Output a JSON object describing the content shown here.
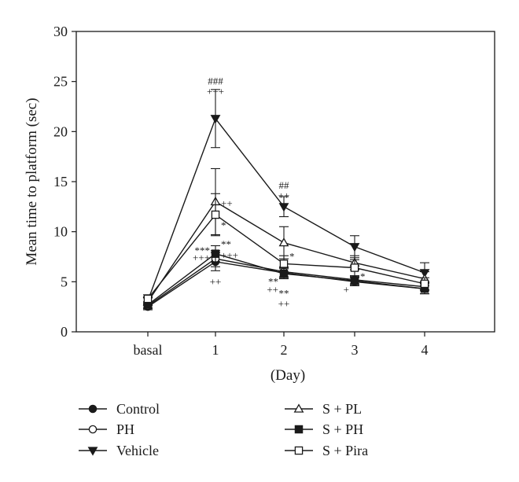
{
  "chart_data": {
    "type": "line",
    "title": "",
    "xlabel": "(Day)",
    "ylabel": "Mean time to platform (sec)",
    "ylim": [
      0,
      30
    ],
    "y_ticks": [
      0,
      5,
      10,
      15,
      20,
      25,
      30
    ],
    "categories": [
      "basal",
      "1",
      "2",
      "3",
      "4"
    ],
    "grid": false,
    "legend_position": "bottom",
    "series": [
      {
        "name": "Control",
        "marker": "circle",
        "fill": "filled",
        "values": [
          2.5,
          7.0,
          5.9,
          5.0,
          4.3
        ],
        "err": [
          0.3,
          0.9,
          0.5,
          0.4,
          0.5
        ]
      },
      {
        "name": "PH",
        "marker": "circle",
        "fill": "open",
        "values": [
          2.6,
          7.3,
          6.0,
          5.2,
          4.5
        ],
        "err": [
          0.3,
          0.8,
          0.5,
          0.4,
          0.4
        ]
      },
      {
        "name": "Vehicle",
        "marker": "triangle-down",
        "fill": "filled",
        "values": [
          3.1,
          21.3,
          12.5,
          8.5,
          5.9
        ],
        "err": [
          0.4,
          2.9,
          1.0,
          1.1,
          1.0
        ]
      },
      {
        "name": "S + PL",
        "marker": "triangle-up",
        "fill": "open",
        "values": [
          3.0,
          13.0,
          8.9,
          6.9,
          5.3
        ],
        "err": [
          0.4,
          3.3,
          1.6,
          0.7,
          0.7
        ]
      },
      {
        "name": "S + PH",
        "marker": "square",
        "fill": "filled",
        "values": [
          2.7,
          7.8,
          5.8,
          5.1,
          4.3
        ],
        "err": [
          0.3,
          0.8,
          0.5,
          0.4,
          0.5
        ]
      },
      {
        "name": "S + Pira",
        "marker": "square",
        "fill": "open",
        "values": [
          3.3,
          11.7,
          6.8,
          6.4,
          4.8
        ],
        "err": [
          0.4,
          2.1,
          0.8,
          0.8,
          0.6
        ]
      }
    ],
    "annotations": [
      {
        "text": "###",
        "x": "1",
        "y": 25.0
      },
      {
        "text": "+++",
        "x": "1",
        "y": 24.0
      },
      {
        "text": "++",
        "x": "1",
        "y": 12.8,
        "side": "right"
      },
      {
        "text": "*",
        "x": "1",
        "y": 10.6,
        "side": "right"
      },
      {
        "text": "**",
        "x": "1",
        "y": 8.7,
        "side": "right"
      },
      {
        "text": "***",
        "x": "1",
        "y": 8.1,
        "side": "left"
      },
      {
        "text": "+++",
        "x": "1",
        "y": 7.4,
        "side": "left"
      },
      {
        "text": "+++",
        "x": "1",
        "y": 7.6,
        "side": "right"
      },
      {
        "text": "++",
        "x": "1",
        "y": 5.0
      },
      {
        "text": "##",
        "x": "2",
        "y": 14.6
      },
      {
        "text": "++",
        "x": "2",
        "y": 13.6
      },
      {
        "text": "*",
        "x": "2",
        "y": 7.5,
        "side": "right"
      },
      {
        "text": "**",
        "x": "2",
        "y": 5.0,
        "side": "left"
      },
      {
        "text": "++",
        "x": "2",
        "y": 4.2,
        "side": "left"
      },
      {
        "text": "**",
        "x": "2",
        "y": 3.8
      },
      {
        "text": "++",
        "x": "2",
        "y": 2.8
      },
      {
        "text": "*",
        "x": "3",
        "y": 5.5,
        "side": "right"
      },
      {
        "text": "+",
        "x": "3",
        "y": 4.2,
        "side": "left"
      }
    ]
  }
}
